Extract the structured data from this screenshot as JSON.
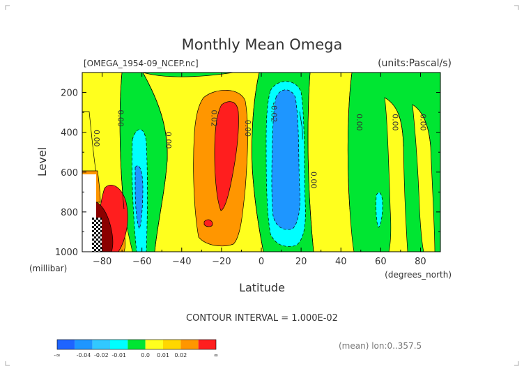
{
  "chart_data": {
    "type": "contour",
    "title": "Monthly Mean Omega",
    "file_label": "[OMEGA_1954-09_NCEP.nc]",
    "units_label": "(units:Pascal/s)",
    "xlabel": "Latitude",
    "xunits": "(degrees_north)",
    "ylabel": "Level",
    "yunits": "(millibar)",
    "xlim": [
      -90,
      90
    ],
    "ylim": [
      1000,
      100
    ],
    "x_ticks": [
      -80,
      -60,
      -40,
      -20,
      0,
      20,
      40,
      60,
      80
    ],
    "y_ticks": [
      200,
      400,
      600,
      800,
      1000
    ],
    "contour_interval_text": "CONTOUR INTERVAL = 1.000E-02",
    "mean_text": "(mean) lon:0..357.5",
    "contour_labels": [
      {
        "text": "0.00",
        "x": -84,
        "y": 430,
        "angle": 90
      },
      {
        "text": "0.00",
        "x": -72,
        "y": 330,
        "angle": 90
      },
      {
        "text": "0.00",
        "x": -48,
        "y": 440,
        "angle": 90
      },
      {
        "text": "0.02",
        "x": -25,
        "y": 330,
        "angle": 90
      },
      {
        "text": "0.00",
        "x": -8,
        "y": 380,
        "angle": 90
      },
      {
        "text": "-0.02",
        "x": 5,
        "y": 300,
        "angle": 90
      },
      {
        "text": "0.00",
        "x": 25,
        "y": 640,
        "angle": 90
      },
      {
        "text": "0.00",
        "x": 48,
        "y": 350,
        "angle": 90
      },
      {
        "text": "0.00",
        "x": 66,
        "y": 350,
        "angle": 90
      },
      {
        "text": "0.00",
        "x": 80,
        "y": 350,
        "angle": 90
      }
    ],
    "colorbar": {
      "colors": [
        "#1e64ff",
        "#1e96ff",
        "#32c8ff",
        "#00ffff",
        "#00e632",
        "#ffff1e",
        "#ffd700",
        "#ff9600",
        "#ff1e1e"
      ],
      "labels": [
        "-∞",
        "-0.04",
        "-0.02",
        "-0.01",
        "0.0",
        "0.01",
        "0.02",
        "∞"
      ]
    }
  }
}
